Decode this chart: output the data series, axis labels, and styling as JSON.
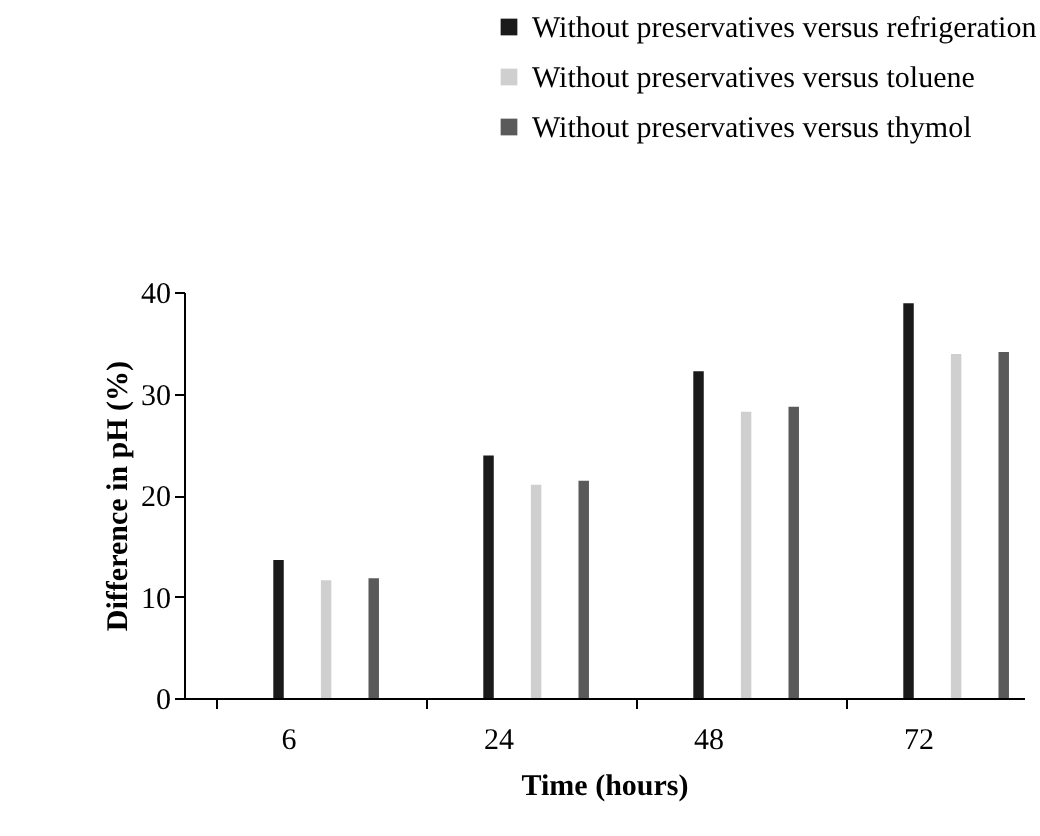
{
  "chart_data": {
    "type": "bar",
    "xlabel": "Time (hours)",
    "ylabel": "Difference in pH (%)",
    "categories": [
      "6",
      "24",
      "48",
      "72"
    ],
    "series": [
      {
        "name": "Without preservatives versus refrigeration",
        "color": "#1a1a1a",
        "values": [
          13.6,
          23.9,
          32.2,
          38.9
        ]
      },
      {
        "name": "Without preservatives versus toluene",
        "color": "#cfcfcf",
        "values": [
          11.6,
          21.0,
          28.2,
          33.9
        ]
      },
      {
        "name": "Without preservatives versus thymol",
        "color": "#5a5a5a",
        "values": [
          11.8,
          21.4,
          28.7,
          34.1
        ]
      }
    ],
    "ylim": [
      0,
      40
    ],
    "yticks": [
      0,
      10,
      20,
      30,
      40
    ],
    "grid": false,
    "legend": "top"
  }
}
